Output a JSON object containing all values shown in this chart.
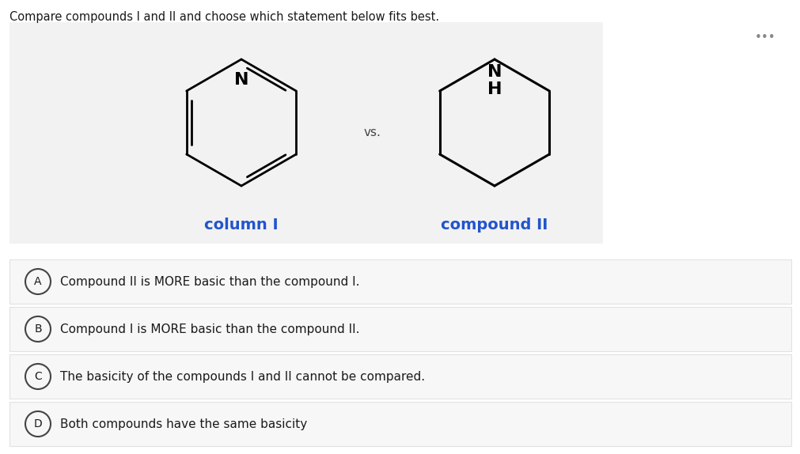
{
  "title": "Compare compounds I and II and choose which statement below fits best.",
  "title_fontsize": 10.5,
  "bg_color": "#ffffff",
  "panel_bg": "#f2f2f2",
  "vs_text": "vs.",
  "label_I": "column I",
  "label_II": "compound II",
  "dots": "•••",
  "options": [
    {
      "letter": "A",
      "text": "Compound II is MORE basic than the compound I."
    },
    {
      "letter": "B",
      "text": "Compound I is MORE basic than the compound II."
    },
    {
      "letter": "C",
      "text": "The basicity of the compounds I and II cannot be compared."
    },
    {
      "letter": "D",
      "text": "Both compounds have the same basicity"
    }
  ],
  "option_bg": "#f7f7f7",
  "option_border": "#e2e2e2",
  "circle_color": "#444444",
  "text_color": "#1a1a1a",
  "label_fontsize": 14,
  "option_fontsize": 11,
  "label_color": "#2255cc"
}
